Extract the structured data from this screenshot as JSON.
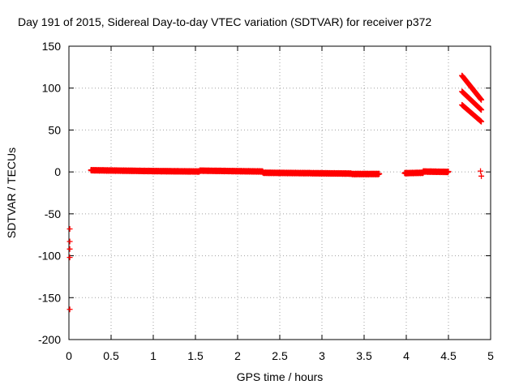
{
  "chart_data": {
    "type": "scatter",
    "title": "Day 191 of 2015, Sidereal Day-to-day VTEC variation (SDTVAR) for receiver p372",
    "xlabel": "GPS time / hours",
    "ylabel": "SDTVAR / TECUs",
    "xlim": [
      0,
      5
    ],
    "ylim": [
      -200,
      150
    ],
    "grid": true,
    "marker": "+",
    "marker_color": "#ff0000",
    "x_ticks": [
      0,
      0.5,
      1,
      1.5,
      2,
      2.5,
      3,
      3.5,
      4,
      4.5,
      5
    ],
    "x_tick_labels": [
      "0",
      "0.5",
      "1",
      "1.5",
      "2",
      "2.5",
      "3",
      "3.5",
      "4",
      "4.5",
      "5"
    ],
    "y_ticks": [
      -200,
      -150,
      -100,
      -50,
      0,
      50,
      100,
      150
    ],
    "y_tick_labels": [
      "-200",
      "-150",
      "-100",
      "-50",
      "0",
      "50",
      "100",
      "150"
    ],
    "series": [
      {
        "name": "near-zero dense band",
        "segments": [
          {
            "x_start": 0.26,
            "x_end": 1.0,
            "y_start": 2,
            "y_end": 1
          },
          {
            "x_start": 1.0,
            "x_end": 1.55,
            "y_start": 1,
            "y_end": 0.5
          },
          {
            "x_start": 1.55,
            "x_end": 2.3,
            "y_start": 1.5,
            "y_end": 0.5
          },
          {
            "x_start": 2.3,
            "x_end": 2.85,
            "y_start": -1,
            "y_end": -1.5
          },
          {
            "x_start": 2.85,
            "x_end": 3.35,
            "y_start": -1.5,
            "y_end": -2
          },
          {
            "x_start": 3.35,
            "x_end": 3.68,
            "y_start": -2.5,
            "y_end": -2.5
          },
          {
            "x_start": 3.98,
            "x_end": 4.2,
            "y_start": -1.5,
            "y_end": -1
          },
          {
            "x_start": 4.2,
            "x_end": 4.5,
            "y_start": 0.5,
            "y_end": 0
          }
        ]
      },
      {
        "name": "early outliers",
        "points": [
          [
            0.01,
            -68
          ],
          [
            0.01,
            -83
          ],
          [
            0.01,
            -92
          ],
          [
            0.01,
            -102
          ],
          [
            0.01,
            -164
          ]
        ]
      },
      {
        "name": "upper descending streaks",
        "streaks": [
          {
            "x_start": 4.66,
            "x_end": 4.89,
            "y_start": 115,
            "y_end": 86
          },
          {
            "x_start": 4.66,
            "x_end": 4.89,
            "y_start": 96,
            "y_end": 74
          },
          {
            "x_start": 4.66,
            "x_end": 4.89,
            "y_start": 80,
            "y_end": 60
          }
        ]
      },
      {
        "name": "late outliers",
        "points": [
          [
            4.88,
            1
          ],
          [
            4.89,
            -5
          ]
        ]
      }
    ]
  }
}
